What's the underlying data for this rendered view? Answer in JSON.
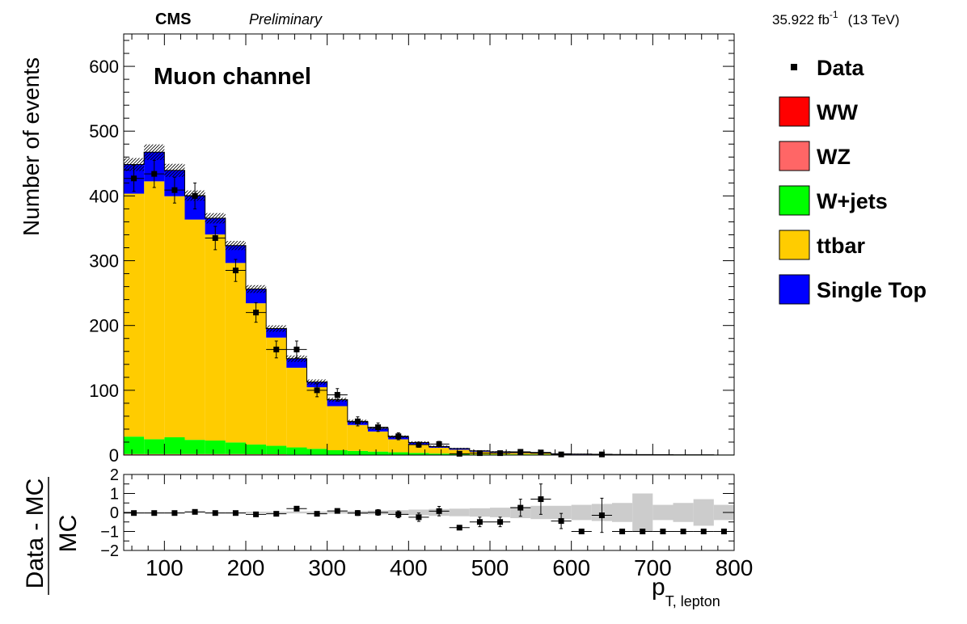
{
  "header": {
    "experiment": "CMS",
    "status": "Preliminary",
    "luminosity": "35.922 fb",
    "lumi_exp": "-1",
    "energy": "(13 TeV)"
  },
  "channel_label": "Muon channel",
  "legend": [
    {
      "label": "Data",
      "color": "#000000",
      "marker": "point"
    },
    {
      "label": "WW",
      "color": "#ff0000",
      "marker": "box"
    },
    {
      "label": "WZ",
      "color": "#ff6666",
      "marker": "box"
    },
    {
      "label": "W+jets",
      "color": "#00ff00",
      "marker": "box"
    },
    {
      "label": "ttbar",
      "color": "#ffcc00",
      "marker": "box"
    },
    {
      "label": "Single Top",
      "color": "#0000ff",
      "marker": "box"
    }
  ],
  "chart_data": [
    {
      "type": "bar",
      "stacked": true,
      "ylabel": "Number of events",
      "xlim": [
        50,
        800
      ],
      "ylim": [
        0,
        650
      ],
      "yticks": [
        0,
        100,
        200,
        300,
        400,
        500,
        600
      ],
      "bin_width": 25,
      "bins_low": [
        50,
        75,
        100,
        125,
        150,
        175,
        200,
        225,
        250,
        275,
        300,
        325,
        350,
        375,
        400,
        425,
        450,
        475,
        500,
        525,
        550,
        575,
        600,
        625,
        650,
        675,
        700,
        725,
        750,
        775
      ],
      "series": [
        {
          "name": "WW",
          "color": "#ff0000",
          "values": [
            1,
            1,
            1,
            1,
            1,
            1,
            1,
            1,
            0.5,
            0.5,
            0.3,
            0.3,
            0.3,
            0.2,
            0.2,
            0.2,
            0.1,
            0.1,
            0.1,
            0.1,
            0.1,
            0,
            0,
            0,
            0,
            0,
            0,
            0,
            0,
            0
          ]
        },
        {
          "name": "WZ",
          "color": "#ff6666",
          "values": [
            0.5,
            0.5,
            0.5,
            0.5,
            0.5,
            0.5,
            0.3,
            0.3,
            0.3,
            0.2,
            0.2,
            0.2,
            0.1,
            0.1,
            0.1,
            0.1,
            0.1,
            0,
            0,
            0,
            0,
            0,
            0,
            0,
            0,
            0,
            0,
            0,
            0,
            0
          ]
        },
        {
          "name": "W+jets",
          "color": "#00ff00",
          "values": [
            27,
            23,
            26,
            22,
            21,
            18,
            15,
            13,
            11,
            9,
            7,
            6,
            5,
            4,
            3,
            2,
            2,
            1,
            1,
            1,
            1,
            0.5,
            0.5,
            0.3,
            0.3,
            0.2,
            0.2,
            0.1,
            0.1,
            0.1
          ]
        },
        {
          "name": "ttbar",
          "color": "#ffcc00",
          "values": [
            375,
            398,
            372,
            340,
            318,
            277,
            218,
            167,
            123,
            95,
            68,
            40,
            31,
            20,
            13,
            9,
            6,
            4,
            3,
            2,
            1.5,
            1,
            0.8,
            0.6,
            0.5,
            0.4,
            0.3,
            0.2,
            0.2,
            0.1
          ]
        },
        {
          "name": "Single Top",
          "color": "#0000ff",
          "values": [
            45,
            45,
            40,
            37,
            25,
            27,
            22,
            14,
            14,
            8,
            10,
            5,
            5,
            4,
            3,
            2,
            2,
            1.5,
            1,
            1,
            0.5,
            0.5,
            0.3,
            0.3,
            0.2,
            0.2,
            0.1,
            0.1,
            0.1,
            0
          ]
        }
      ],
      "mc_uncertainty": [
        10,
        12,
        10,
        8,
        8,
        7,
        6,
        5,
        5,
        4,
        3,
        3,
        2,
        2,
        2,
        1.5,
        1,
        1,
        1,
        0.5,
        0.5,
        0.5,
        0.5,
        0.3,
        0.3,
        0.3,
        0.3,
        0.2,
        0.2,
        0.2
      ],
      "data": {
        "name": "Data",
        "x": [
          62.5,
          87.5,
          112.5,
          137.5,
          162.5,
          187.5,
          212.5,
          237.5,
          262.5,
          287.5,
          312.5,
          337.5,
          362.5,
          387.5,
          412.5,
          437.5,
          462.5,
          487.5,
          512.5,
          537.5,
          562.5,
          587.5,
          637.5
        ],
        "y": [
          427,
          434,
          409,
          400,
          335,
          285,
          220,
          163,
          163,
          100,
          93,
          52,
          43,
          29,
          16,
          17,
          2,
          3,
          3,
          5,
          4,
          1,
          1
        ],
        "yerr": [
          20,
          21,
          20,
          20,
          18,
          17,
          15,
          13,
          13,
          10,
          9.6,
          7,
          6.6,
          5.4,
          4,
          4.1,
          1.4,
          1.7,
          1.7,
          2.2,
          2,
          1,
          1
        ]
      }
    },
    {
      "type": "scatter",
      "xlabel": "p",
      "xlabel_sub": "T, lepton",
      "ylabel_num": "Data - MC",
      "ylabel_den": "MC",
      "xlim": [
        50,
        800
      ],
      "ylim": [
        -2,
        2
      ],
      "yticks": [
        -2,
        -1,
        0,
        1,
        2
      ],
      "xticks": [
        100,
        200,
        300,
        400,
        500,
        600,
        700,
        800
      ],
      "x": [
        62.5,
        87.5,
        112.5,
        137.5,
        162.5,
        187.5,
        212.5,
        237.5,
        262.5,
        287.5,
        312.5,
        337.5,
        362.5,
        387.5,
        412.5,
        437.5,
        462.5,
        487.5,
        512.5,
        537.5,
        562.5,
        587.5,
        612.5,
        637.5,
        662.5,
        687.5,
        712.5,
        737.5,
        762.5,
        787.5
      ],
      "y": [
        -0.03,
        -0.03,
        -0.03,
        0.03,
        -0.03,
        -0.03,
        -0.1,
        -0.07,
        0.2,
        -0.07,
        0.08,
        -0.03,
        0.0,
        -0.1,
        -0.25,
        0.07,
        -0.8,
        -0.5,
        -0.5,
        0.25,
        0.7,
        -0.45,
        -1.0,
        -0.15,
        -1.0,
        -1.0,
        -1.0,
        -1.0,
        -1.0,
        -1.0
      ],
      "yerr": [
        0.05,
        0.05,
        0.05,
        0.05,
        0.05,
        0.06,
        0.07,
        0.08,
        0.1,
        0.1,
        0.1,
        0.13,
        0.15,
        0.18,
        0.22,
        0.25,
        0.0,
        0.25,
        0.25,
        0.45,
        0.8,
        0.4,
        0.0,
        0.9,
        0.0,
        0.0,
        0.0,
        0.0,
        0.0,
        0.0
      ],
      "uncertainty_band": [
        0.03,
        0.03,
        0.03,
        0.03,
        0.03,
        0.03,
        0.04,
        0.04,
        0.05,
        0.05,
        0.06,
        0.08,
        0.1,
        0.12,
        0.15,
        0.18,
        0.2,
        0.22,
        0.25,
        0.3,
        0.35,
        0.35,
        0.4,
        0.45,
        0.5,
        1.0,
        0.4,
        0.5,
        0.7,
        0.4
      ]
    }
  ]
}
